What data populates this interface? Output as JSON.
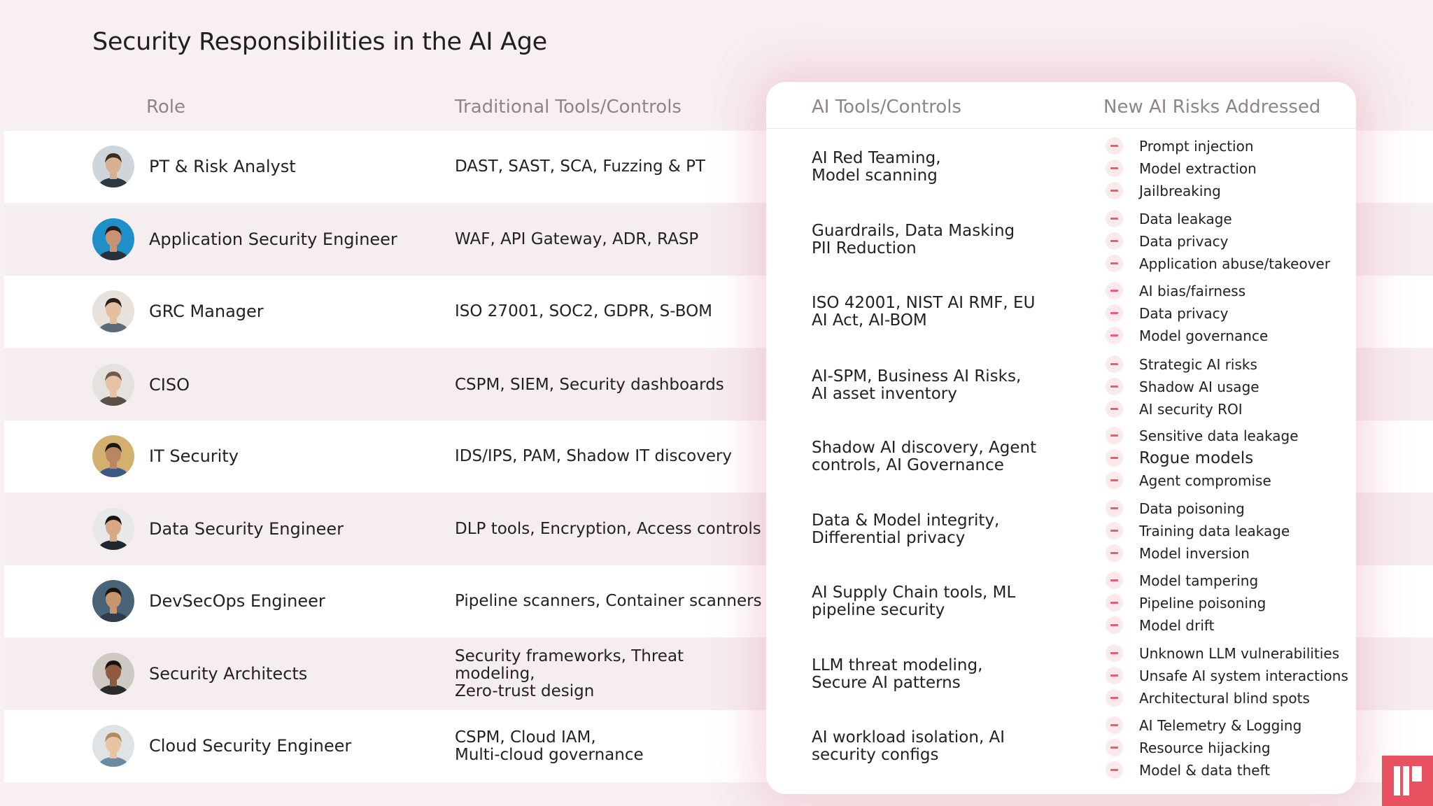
{
  "title": "Security Responsibilities in the AI Age",
  "headers": {
    "role": "Role",
    "traditional": "Traditional Tools/Controls",
    "ai_tools": "AI Tools/Controls",
    "ai_risks": "New AI Risks Addressed"
  },
  "rows": [
    {
      "role": "PT & Risk Analyst",
      "traditional": [
        "DAST, SAST, SCA, Fuzzing & PT"
      ],
      "ai_tools": [
        "AI Red Teaming,",
        "Model scanning"
      ],
      "risks": [
        "Prompt injection",
        "Model extraction",
        "Jailbreaking"
      ]
    },
    {
      "role": "Application Security Engineer",
      "traditional": [
        "WAF, API Gateway, ADR, RASP"
      ],
      "ai_tools": [
        "Guardrails, Data Masking",
        "PII Reduction"
      ],
      "risks": [
        "Data leakage",
        "Data privacy",
        "Application abuse/takeover"
      ]
    },
    {
      "role": "GRC Manager",
      "traditional": [
        "ISO 27001, SOC2, GDPR, S-BOM"
      ],
      "ai_tools": [
        "ISO 42001, NIST AI RMF, EU",
        "AI Act, AI-BOM"
      ],
      "risks": [
        "AI bias/fairness",
        "Data privacy",
        "Model governance"
      ]
    },
    {
      "role": "CISO",
      "traditional": [
        "CSPM, SIEM, Security dashboards"
      ],
      "ai_tools": [
        "AI-SPM, Business AI Risks,",
        "AI asset inventory"
      ],
      "risks": [
        "Strategic AI risks",
        "Shadow AI usage",
        "AI security ROI"
      ]
    },
    {
      "role": "IT Security",
      "traditional": [
        "IDS/IPS, PAM, Shadow IT discovery"
      ],
      "ai_tools": [
        "Shadow AI discovery, Agent",
        "controls, AI Governance"
      ],
      "risks": [
        "Sensitive data leakage",
        "Rogue models",
        "Agent compromise"
      ]
    },
    {
      "role": "Data Security Engineer",
      "traditional": [
        "DLP tools, Encryption, Access controls"
      ],
      "ai_tools": [
        "Data & Model integrity,",
        "Differential privacy"
      ],
      "risks": [
        "Data poisoning",
        "Training data leakage",
        "Model inversion"
      ]
    },
    {
      "role": "DevSecOps Engineer",
      "traditional": [
        "Pipeline scanners, Container scanners"
      ],
      "ai_tools": [
        "AI Supply Chain tools, ML",
        "pipeline security"
      ],
      "risks": [
        "Model tampering",
        "Pipeline poisoning",
        "Model drift"
      ]
    },
    {
      "role": "Security Architects",
      "traditional": [
        "Security frameworks, Threat modeling,",
        "Zero-trust design"
      ],
      "ai_tools": [
        "LLM threat modeling,",
        "Secure AI patterns"
      ],
      "risks": [
        "Unknown LLM vulnerabilities",
        "Unsafe AI system interactions",
        "Architectural blind spots"
      ]
    },
    {
      "role": "Cloud Security Engineer",
      "traditional": [
        "CSPM, Cloud IAM,",
        "Multi-cloud governance"
      ],
      "ai_tools": [
        "AI workload isolation, AI",
        "security configs"
      ],
      "risks": [
        "AI Telemetry & Logging",
        "Resource hijacking",
        "Model & data theft"
      ]
    }
  ],
  "colors": {
    "accent": "#e85d6f",
    "logo": "#e8515f",
    "background": "#f7eff1",
    "band_pink": "#f6edf0",
    "header_text": "#8e8588"
  }
}
